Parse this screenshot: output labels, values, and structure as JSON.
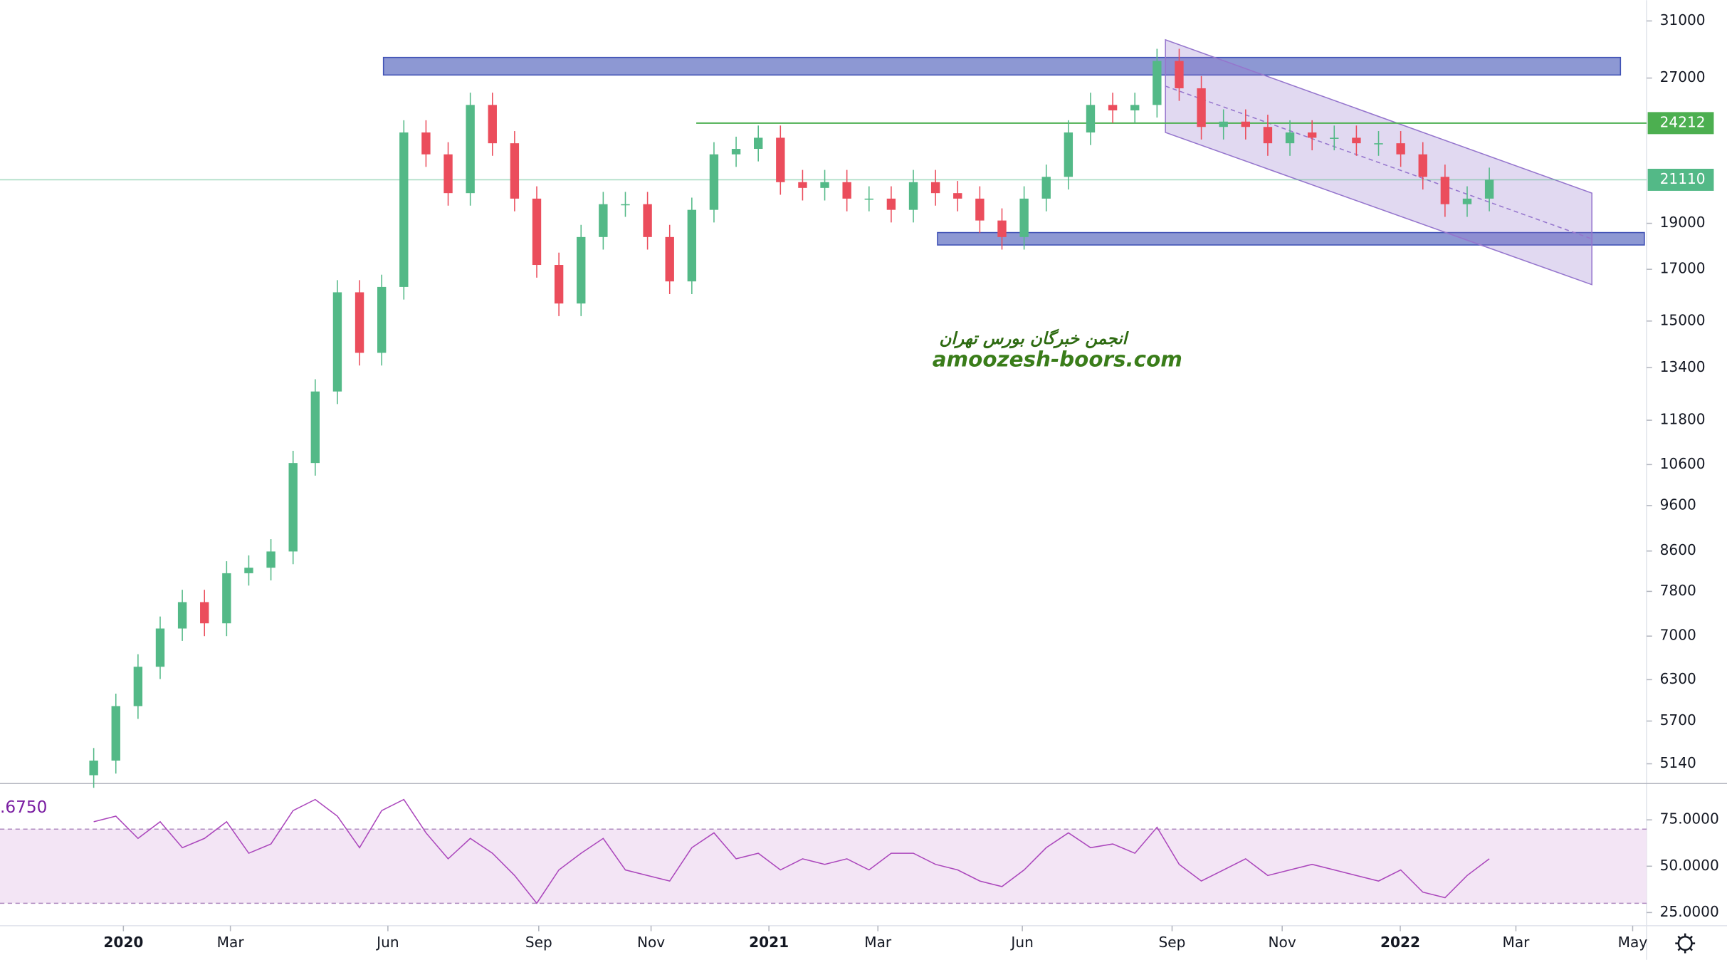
{
  "chart_data": [
    {
      "type": "candlestick",
      "log": true,
      "ylim": [
        4900,
        32600
      ],
      "xlim": [
        -4.23,
        70.1
      ],
      "yticks": [
        31000,
        27000,
        19000,
        17000,
        15000,
        13400,
        11800,
        10600,
        9600,
        8600,
        7800,
        7000,
        6300,
        5700,
        5140
      ],
      "up_color": "#53b987",
      "down_color": "#eb4d5c",
      "open": [
        5000,
        5180,
        5910,
        6500,
        7130,
        7600,
        7220,
        8150,
        8260,
        8590,
        10640,
        12650,
        16080,
        13890,
        16290,
        23670,
        22450,
        20440,
        25300,
        23060,
        20170,
        17180,
        15650,
        18380,
        19900,
        19900,
        18380,
        16510,
        19630,
        22450,
        22750,
        23370,
        20990,
        20700,
        20990,
        20170,
        20170,
        19630,
        20990,
        20440,
        20170,
        19130,
        18380,
        20170,
        21260,
        23670,
        25300,
        24970,
        25300,
        28140,
        26340,
        23990,
        24300,
        23990,
        23060,
        23670,
        23370,
        23370,
        23060,
        23060,
        22450,
        21260,
        19900,
        20170
      ],
      "high": [
        5340,
        6090,
        6700,
        7340,
        7830,
        7830,
        8390,
        8510,
        8850,
        10960,
        13030,
        16560,
        16560,
        16780,
        24380,
        24380,
        23120,
        26060,
        26060,
        23750,
        20780,
        17700,
        18930,
        20500,
        20500,
        20500,
        18930,
        20220,
        23120,
        23430,
        24070,
        24070,
        21620,
        21620,
        21620,
        20780,
        20780,
        21620,
        21620,
        21050,
        20780,
        19700,
        20780,
        21900,
        24380,
        26060,
        26060,
        26060,
        28980,
        28980,
        27130,
        25030,
        25030,
        24710,
        24380,
        24380,
        24070,
        24070,
        23750,
        23750,
        23120,
        21900,
        20780,
        21740
      ],
      "low": [
        4850,
        5020,
        5730,
        6310,
        6920,
        7000,
        7000,
        7910,
        8010,
        8330,
        10320,
        12270,
        13470,
        13470,
        15800,
        21780,
        19830,
        19830,
        22370,
        19560,
        16660,
        15180,
        15180,
        17830,
        19300,
        17830,
        16010,
        16010,
        19040,
        21780,
        22070,
        20360,
        20080,
        20080,
        19560,
        19560,
        19040,
        19040,
        19830,
        19560,
        18560,
        17830,
        17830,
        19560,
        20620,
        22960,
        24220,
        24220,
        24540,
        25550,
        23270,
        23270,
        23270,
        22370,
        22370,
        22670,
        22670,
        22370,
        22370,
        21780,
        20620,
        19300,
        19300,
        19560
      ],
      "close": [
        5180,
        5910,
        6500,
        7130,
        7600,
        7220,
        8150,
        8260,
        8590,
        10640,
        12650,
        16080,
        13890,
        16290,
        23670,
        22450,
        20440,
        25300,
        23060,
        20170,
        17180,
        15650,
        18380,
        19900,
        19900,
        18380,
        16510,
        19630,
        22450,
        22750,
        23370,
        20990,
        20700,
        20990,
        20170,
        20170,
        19630,
        20990,
        20440,
        20170,
        19130,
        18380,
        20170,
        21260,
        23670,
        25300,
        24970,
        25300,
        28140,
        26340,
        23990,
        24300,
        23990,
        23060,
        23670,
        23370,
        23370,
        23060,
        23060,
        22450,
        21260,
        19900,
        20170,
        21110
      ],
      "hline": {
        "value": 24212,
        "start": 27.2,
        "color": "#4caf50"
      },
      "last_price": 21110,
      "zones": [
        {
          "x": [
            13.08,
            68.92
          ],
          "y": [
            27200,
            28380
          ],
          "color": "#7986cb"
        },
        {
          "x": [
            38.09,
            70.0
          ],
          "y": [
            18030,
            18580
          ],
          "color": "#7986cb"
        }
      ],
      "channel": {
        "x": [
          48.38,
          67.63
        ],
        "top": [
          29620,
          20440
        ],
        "bottom": [
          23670,
          16380
        ],
        "color": "#9575cd"
      },
      "annotations": [
        "انجمن خبرگان بورس تهران",
        "amoozesh-boors.com"
      ]
    },
    {
      "type": "line",
      "xlim": [
        -4.23,
        70.1
      ],
      "ylim": [
        17.9,
        94
      ],
      "yticks": [
        {
          "value": 75,
          "label": "75.0000"
        },
        {
          "value": 50,
          "label": "50.0000"
        },
        {
          "value": 25,
          "label": "25.0000"
        }
      ],
      "band": [
        30,
        70
      ],
      "color": "#ab47bc",
      "value_label": ".6750",
      "values": [
        74,
        77,
        65,
        74,
        60,
        65,
        74,
        57,
        62,
        80,
        86,
        77,
        60,
        80,
        86,
        68,
        54,
        65,
        57,
        45,
        30,
        48,
        57,
        65,
        48,
        45,
        42,
        60,
        68,
        54,
        57,
        48,
        54,
        51,
        54,
        48,
        57,
        57,
        51,
        48,
        42,
        39,
        48,
        60,
        68,
        60,
        62,
        57,
        71,
        51,
        42,
        48,
        54,
        45,
        48,
        51,
        48,
        45,
        42,
        48,
        36,
        33,
        45,
        54
      ],
      "xticks": [
        {
          "value": 1.34,
          "label": "2020"
        },
        {
          "value": 6.17,
          "label": "Mar"
        },
        {
          "value": 13.28,
          "label": "Jun"
        },
        {
          "value": 20.09,
          "label": "Sep"
        },
        {
          "value": 25.16,
          "label": "Nov"
        },
        {
          "value": 30.48,
          "label": "2021"
        },
        {
          "value": 35.4,
          "label": "Mar"
        },
        {
          "value": 41.92,
          "label": "Jun"
        },
        {
          "value": 48.68,
          "label": "Sep"
        },
        {
          "value": 53.65,
          "label": "Nov"
        },
        {
          "value": 58.98,
          "label": "2022"
        },
        {
          "value": 64.2,
          "label": "Mar"
        },
        {
          "value": 69.47,
          "label": "May"
        }
      ]
    }
  ]
}
